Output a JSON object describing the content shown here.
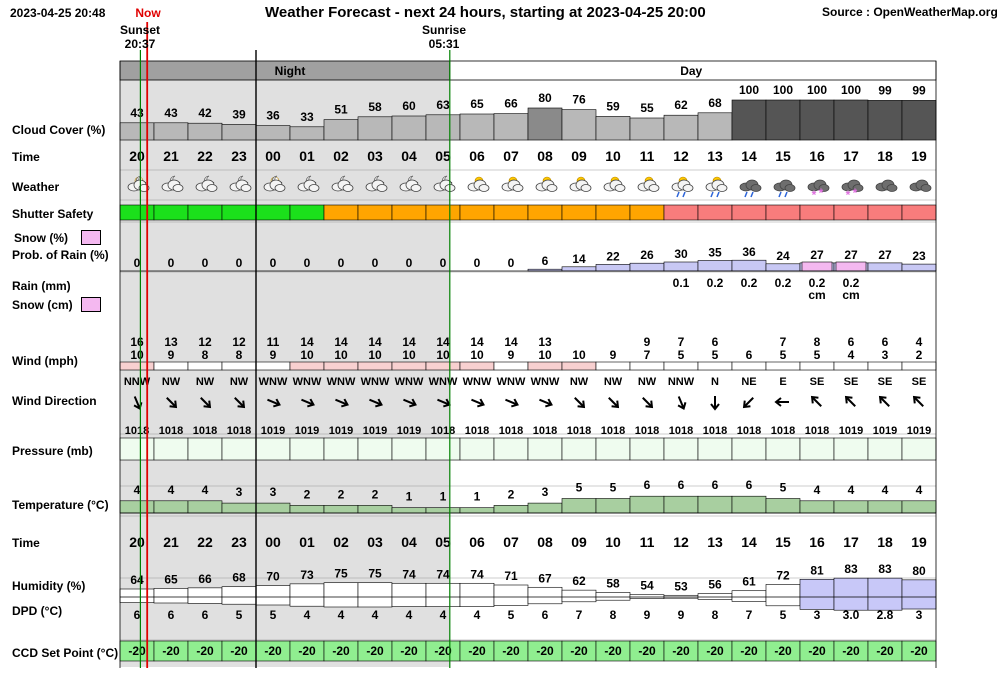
{
  "header": {
    "timestamp": "2023-04-25 20:48",
    "title": "Weather Forecast - next 24 hours, starting at 2023-04-25 20:00",
    "source": "Source : OpenWeatherMap.org",
    "now_label": "Now",
    "sunset_label": "Sunset",
    "sunset_time": "20:37",
    "sunrise_label": "Sunrise",
    "sunrise_time": "05:31"
  },
  "periods": {
    "night": "Night",
    "day": "Day"
  },
  "row_labels": {
    "cloud": "Cloud Cover (%)",
    "time": "Time",
    "weather": "Weather",
    "shutter": "Shutter Safety",
    "snow_pct": "Snow (%)",
    "rain_prob": "Prob. of Rain (%)",
    "rain_mm": "Rain (mm)",
    "snow_cm": "Snow (cm)",
    "wind": "Wind (mph)",
    "wind_dir": "Wind Direction",
    "pressure": "Pressure (mb)",
    "temperature": "Temperature (°C)",
    "time2": "Time",
    "humidity": "Humidity (%)",
    "dpd": "DPD (°C)",
    "ccd": "CCD Set Point (°C)"
  },
  "colors": {
    "shutter_safe": "#1be01b",
    "shutter_caution": "#ffa500",
    "shutter_unsafe": "#f87c7c",
    "night_bg": "#e0e0e0",
    "ccd_bg": "#90ee90",
    "now_line": "#e00000",
    "sun_line": "#008000",
    "snow_swatch": "#f4b8f0"
  },
  "chart_data": {
    "type": "table",
    "hours": [
      "20",
      "21",
      "22",
      "23",
      "00",
      "01",
      "02",
      "03",
      "04",
      "05",
      "06",
      "07",
      "08",
      "09",
      "10",
      "11",
      "12",
      "13",
      "14",
      "15",
      "16",
      "17",
      "18",
      "19"
    ],
    "cloud_cover": [
      43,
      43,
      42,
      39,
      36,
      33,
      51,
      58,
      60,
      63,
      65,
      66,
      80,
      76,
      59,
      55,
      62,
      68,
      100,
      100,
      100,
      100,
      99,
      99
    ],
    "weather_icons": [
      "partly-cloudy-night",
      "cloudy-night",
      "cloudy-night",
      "cloudy-night",
      "partly-cloudy-night",
      "cloudy-night",
      "cloudy-night",
      "cloudy-night",
      "cloudy-night",
      "cloudy-night",
      "partly-cloudy-day",
      "partly-cloudy-day",
      "partly-cloudy-day",
      "partly-cloudy-day",
      "partly-cloudy-day",
      "partly-cloudy-day",
      "rain-day",
      "rain-day",
      "rain",
      "rain",
      "snow",
      "snow",
      "cloudy",
      "cloudy"
    ],
    "shutter_safety": [
      "safe",
      "safe",
      "safe",
      "safe",
      "safe",
      "safe",
      "caution",
      "caution",
      "caution",
      "caution",
      "caution",
      "caution",
      "caution",
      "caution",
      "caution",
      "caution",
      "unsafe",
      "unsafe",
      "unsafe",
      "unsafe",
      "unsafe",
      "unsafe",
      "unsafe",
      "unsafe"
    ],
    "prob_of_rain": [
      0,
      0,
      0,
      0,
      0,
      0,
      0,
      0,
      0,
      0,
      0,
      0,
      6,
      14,
      22,
      26,
      30,
      35,
      36,
      24,
      27,
      27,
      27,
      23
    ],
    "prob_of_snow": [
      0,
      0,
      0,
      0,
      0,
      0,
      0,
      0,
      0,
      0,
      0,
      0,
      0,
      0,
      0,
      0,
      0,
      0,
      0,
      0,
      10,
      10,
      0,
      0
    ],
    "rain_mm": [
      null,
      null,
      null,
      null,
      null,
      null,
      null,
      null,
      null,
      null,
      null,
      null,
      null,
      null,
      null,
      null,
      "0.1",
      "0.2",
      "0.2",
      "0.2",
      "0.2",
      "0.2",
      null,
      null
    ],
    "snow_cm": [
      null,
      null,
      null,
      null,
      null,
      null,
      null,
      null,
      null,
      null,
      null,
      null,
      null,
      null,
      null,
      null,
      null,
      null,
      null,
      null,
      "cm",
      "cm",
      null,
      null
    ],
    "wind_gust": [
      16,
      13,
      12,
      12,
      11,
      14,
      14,
      14,
      14,
      14,
      14,
      14,
      13,
      null,
      null,
      9,
      7,
      6,
      null,
      7,
      8,
      6,
      6,
      4
    ],
    "wind_speed": [
      10,
      9,
      8,
      8,
      9,
      10,
      10,
      10,
      10,
      10,
      10,
      9,
      10,
      10,
      9,
      7,
      5,
      5,
      6,
      5,
      5,
      4,
      3,
      2
    ],
    "wind_direction": [
      "NNW",
      "NW",
      "NW",
      "NW",
      "WNW",
      "WNW",
      "WNW",
      "WNW",
      "WNW",
      "WNW",
      "WNW",
      "WNW",
      "WNW",
      "NW",
      "NW",
      "NW",
      "NNW",
      "N",
      "NE",
      "E",
      "SE",
      "SE",
      "SE",
      "SE"
    ],
    "pressure": [
      1018,
      1018,
      1018,
      1018,
      1019,
      1019,
      1019,
      1019,
      1019,
      1018,
      1018,
      1018,
      1018,
      1018,
      1018,
      1018,
      1018,
      1018,
      1018,
      1018,
      1018,
      1019,
      1019,
      1019
    ],
    "temperature": [
      4,
      4,
      4,
      3,
      3,
      2,
      2,
      2,
      1,
      1,
      1,
      2,
      3,
      5,
      5,
      6,
      6,
      6,
      6,
      5,
      4,
      4,
      4,
      4
    ],
    "humidity": [
      64,
      65,
      66,
      68,
      70,
      73,
      75,
      75,
      74,
      74,
      74,
      71,
      67,
      62,
      58,
      54,
      53,
      56,
      61,
      72,
      81,
      83,
      83,
      80
    ],
    "dpd": [
      "6",
      "6",
      "6",
      "5",
      "5",
      "4",
      "4",
      "4",
      "4",
      "4",
      "4",
      "5",
      "6",
      "7",
      "8",
      "9",
      "9",
      "8",
      "7",
      "5",
      "3",
      "3.0",
      "2.8",
      "3"
    ],
    "ccd_set_point": [
      -20,
      -20,
      -20,
      -20,
      -20,
      -20,
      -20,
      -20,
      -20,
      -20,
      -20,
      -20,
      -20,
      -20,
      -20,
      -20,
      -20,
      -20,
      -20,
      -20,
      -20,
      -20,
      -20,
      -20
    ]
  }
}
